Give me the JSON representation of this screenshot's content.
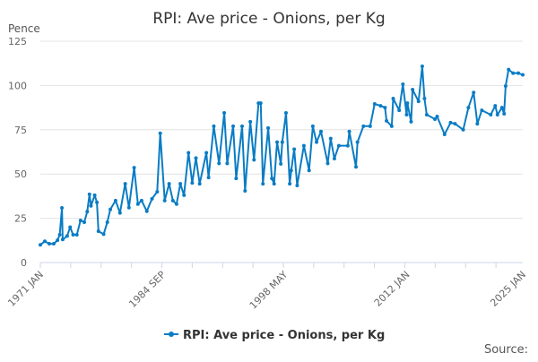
{
  "chart_data": {
    "type": "line",
    "title": "RPI: Ave price - Onions, per Kg",
    "ylabel": "Pence",
    "xlabel": "",
    "ylim": [
      0,
      125
    ],
    "yticks": [
      0,
      25,
      50,
      75,
      100,
      125
    ],
    "xlim": [
      "1971-01",
      "2025-01"
    ],
    "xtick_labels": [
      {
        "date": "1971-01",
        "label": "1971 JAN"
      },
      {
        "date": "1984-09",
        "label": "1984 SEP"
      },
      {
        "date": "1998-05",
        "label": "1998 MAY"
      },
      {
        "date": "2012-01",
        "label": "2012 JAN"
      },
      {
        "date": "2025-01",
        "label": "2025 JAN"
      }
    ],
    "grid": true,
    "legend_placement": "bottom",
    "series": [
      {
        "name": "RPI: Ave price - Onions, per Kg",
        "color": "#0a7cc4",
        "points": [
          [
            "1971-01",
            10
          ],
          [
            "1971-07",
            12
          ],
          [
            "1972-01",
            10.6
          ],
          [
            "1972-07",
            10.6
          ],
          [
            "1972-12",
            12.6
          ],
          [
            "1973-03",
            15.7
          ],
          [
            "1973-06",
            30.9
          ],
          [
            "1973-07",
            13
          ],
          [
            "1974-01",
            15
          ],
          [
            "1974-05",
            20
          ],
          [
            "1974-09",
            15.7
          ],
          [
            "1975-02",
            15.7
          ],
          [
            "1975-07",
            23.8
          ],
          [
            "1975-12",
            22.8
          ],
          [
            "1976-04",
            28.8
          ],
          [
            "1976-07",
            38.5
          ],
          [
            "1976-09",
            32
          ],
          [
            "1977-02",
            38
          ],
          [
            "1977-05",
            34
          ],
          [
            "1977-07",
            17.7
          ],
          [
            "1978-02",
            16
          ],
          [
            "1978-07",
            22.8
          ],
          [
            "1978-11",
            30
          ],
          [
            "1979-06",
            35
          ],
          [
            "1979-12",
            28
          ],
          [
            "1980-07",
            44.5
          ],
          [
            "1980-12",
            31
          ],
          [
            "1981-07",
            53.6
          ],
          [
            "1981-12",
            33
          ],
          [
            "1982-05",
            35
          ],
          [
            "1982-12",
            29
          ],
          [
            "1983-07",
            36
          ],
          [
            "1984-02",
            40
          ],
          [
            "1984-06",
            73
          ],
          [
            "1984-12",
            35
          ],
          [
            "1985-06",
            44.5
          ],
          [
            "1985-11",
            35
          ],
          [
            "1986-04",
            33
          ],
          [
            "1986-09",
            44.5
          ],
          [
            "1987-02",
            38
          ],
          [
            "1987-08",
            62
          ],
          [
            "1988-01",
            45
          ],
          [
            "1988-06",
            59
          ],
          [
            "1988-11",
            44.5
          ],
          [
            "1989-08",
            62
          ],
          [
            "1989-11",
            48
          ],
          [
            "1990-06",
            77
          ],
          [
            "1991-01",
            56
          ],
          [
            "1991-08",
            84.5
          ],
          [
            "1991-12",
            56
          ],
          [
            "1992-08",
            77
          ],
          [
            "1992-12",
            47.5
          ],
          [
            "1993-08",
            77
          ],
          [
            "1993-12",
            40.5
          ],
          [
            "1994-07",
            79.5
          ],
          [
            "1994-12",
            58
          ],
          [
            "1995-06",
            90
          ],
          [
            "1995-09",
            90
          ],
          [
            "1995-12",
            44.5
          ],
          [
            "1996-07",
            76
          ],
          [
            "1996-12",
            47.5
          ],
          [
            "1997-03",
            44.5
          ],
          [
            "1997-07",
            68
          ],
          [
            "1997-12",
            55.7
          ],
          [
            "1998-02",
            68
          ],
          [
            "1998-07",
            84.5
          ],
          [
            "1998-12",
            44.5
          ],
          [
            "1999-02",
            52
          ],
          [
            "1999-06",
            64
          ],
          [
            "1999-10",
            43.5
          ],
          [
            "2000-07",
            66
          ],
          [
            "2001-02",
            52
          ],
          [
            "2001-07",
            77
          ],
          [
            "2001-12",
            68
          ],
          [
            "2002-06",
            74
          ],
          [
            "2003-03",
            56
          ],
          [
            "2003-07",
            70
          ],
          [
            "2003-12",
            58.7
          ],
          [
            "2004-06",
            66
          ],
          [
            "2005-06",
            66
          ],
          [
            "2005-08",
            74
          ],
          [
            "2006-05",
            54
          ],
          [
            "2006-07",
            68
          ],
          [
            "2007-03",
            77
          ],
          [
            "2007-12",
            77
          ],
          [
            "2008-06",
            89.6
          ],
          [
            "2009-02",
            88.5
          ],
          [
            "2009-08",
            87.5
          ],
          [
            "2009-10",
            80
          ],
          [
            "2010-05",
            77
          ],
          [
            "2010-07",
            92.6
          ],
          [
            "2011-03",
            86
          ],
          [
            "2011-08",
            100.7
          ],
          [
            "2012-01",
            83.5
          ],
          [
            "2012-02",
            90
          ],
          [
            "2012-07",
            79.5
          ],
          [
            "2012-09",
            97.7
          ],
          [
            "2013-05",
            91
          ],
          [
            "2013-10",
            110.8
          ],
          [
            "2014-01",
            92.6
          ],
          [
            "2014-04",
            83.5
          ],
          [
            "2015-03",
            81
          ],
          [
            "2015-06",
            82.5
          ],
          [
            "2016-04",
            72.4
          ],
          [
            "2016-12",
            79
          ],
          [
            "2017-06",
            78.4
          ],
          [
            "2018-05",
            75
          ],
          [
            "2018-12",
            87.5
          ],
          [
            "2019-07",
            96
          ],
          [
            "2019-12",
            78.4
          ],
          [
            "2020-06",
            86
          ],
          [
            "2021-06",
            83.5
          ],
          [
            "2021-12",
            88.5
          ],
          [
            "2022-03",
            83.5
          ],
          [
            "2022-09",
            87.5
          ],
          [
            "2022-12",
            84
          ],
          [
            "2023-02",
            99.7
          ],
          [
            "2023-06",
            109
          ],
          [
            "2023-12",
            107
          ],
          [
            "2024-07",
            107
          ],
          [
            "2025-01",
            106
          ]
        ]
      }
    ],
    "source_label": "Source:"
  }
}
